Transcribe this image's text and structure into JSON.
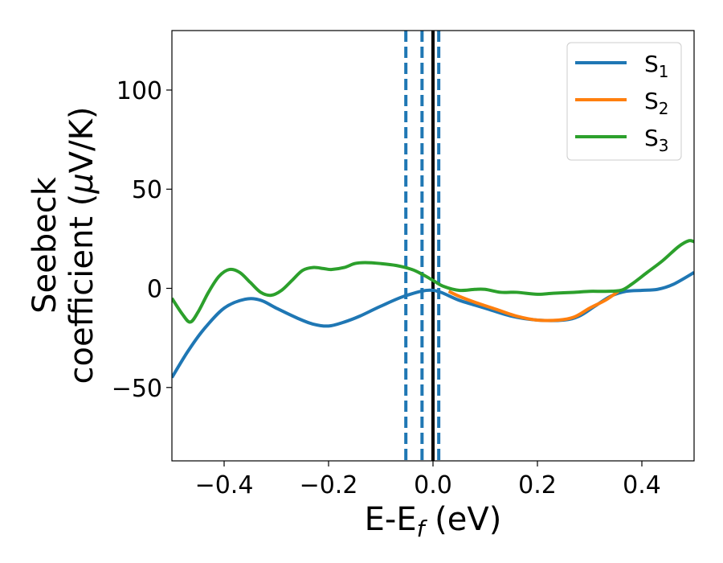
{
  "chart_data": {
    "type": "line",
    "xlabel": {
      "main": "E-E",
      "sub": "f",
      "tail": " (eV)"
    },
    "ylabel": {
      "line1": "Seebeck",
      "line2_start": "coefficient  (",
      "mu": "μ",
      "line2_end": "V/K)"
    },
    "xlim": [
      -0.5,
      0.5
    ],
    "ylim": [
      -87,
      130
    ],
    "x_ticks": [
      -0.4,
      -0.2,
      0.0,
      0.2,
      0.4
    ],
    "x_tick_labels": [
      "−0.4",
      "−0.2",
      "0.0",
      "0.2",
      "0.4"
    ],
    "y_ticks": [
      -50,
      0,
      50,
      100
    ],
    "y_tick_labels": [
      "−50",
      "0",
      "50",
      "100"
    ],
    "grid": false,
    "legend_position": "top-right",
    "vertical_lines": [
      {
        "x": -0.052,
        "style": "dashed",
        "color": "#1f77b4"
      },
      {
        "x": -0.021,
        "style": "dashed",
        "color": "#1f77b4"
      },
      {
        "x": 0.011,
        "style": "dashed",
        "color": "#1f77b4"
      },
      {
        "x": 0.0,
        "style": "solid",
        "color": "#000000"
      }
    ],
    "series": [
      {
        "name": "S",
        "sub": "1",
        "color": "#1f77b4",
        "points": [
          [
            -0.5,
            -45
          ],
          [
            -0.47,
            -32
          ],
          [
            -0.44,
            -21
          ],
          [
            -0.4,
            -10
          ],
          [
            -0.36,
            -5.5
          ],
          [
            -0.33,
            -6
          ],
          [
            -0.3,
            -10
          ],
          [
            -0.26,
            -15
          ],
          [
            -0.23,
            -18
          ],
          [
            -0.2,
            -19
          ],
          [
            -0.17,
            -17
          ],
          [
            -0.14,
            -14
          ],
          [
            -0.1,
            -9
          ],
          [
            -0.05,
            -3.5
          ],
          [
            0.0,
            -1
          ],
          [
            0.05,
            -6
          ],
          [
            0.1,
            -10
          ],
          [
            0.15,
            -14
          ],
          [
            0.2,
            -16
          ],
          [
            0.25,
            -16
          ],
          [
            0.28,
            -14
          ],
          [
            0.31,
            -9
          ],
          [
            0.34,
            -4
          ],
          [
            0.37,
            -1.5
          ],
          [
            0.4,
            -1
          ],
          [
            0.43,
            -0.5
          ],
          [
            0.46,
            2
          ],
          [
            0.5,
            8
          ]
        ]
      },
      {
        "name": "S",
        "sub": "2",
        "color": "#ff7f0e",
        "points": [
          [
            0.03,
            -1.5
          ],
          [
            0.05,
            -4
          ],
          [
            0.08,
            -7
          ],
          [
            0.12,
            -10.5
          ],
          [
            0.16,
            -14
          ],
          [
            0.2,
            -16
          ],
          [
            0.24,
            -16
          ],
          [
            0.27,
            -14.5
          ],
          [
            0.3,
            -10
          ],
          [
            0.33,
            -6
          ],
          [
            0.355,
            -1.5
          ]
        ]
      },
      {
        "name": "S",
        "sub": "3",
        "color": "#2ca02c",
        "points": [
          [
            -0.5,
            -5
          ],
          [
            -0.48,
            -13
          ],
          [
            -0.465,
            -17
          ],
          [
            -0.45,
            -12
          ],
          [
            -0.43,
            -2
          ],
          [
            -0.41,
            6
          ],
          [
            -0.39,
            9.5
          ],
          [
            -0.37,
            8
          ],
          [
            -0.35,
            3
          ],
          [
            -0.33,
            -2
          ],
          [
            -0.31,
            -3.5
          ],
          [
            -0.29,
            -1
          ],
          [
            -0.27,
            4
          ],
          [
            -0.25,
            9
          ],
          [
            -0.23,
            10.5
          ],
          [
            -0.21,
            10
          ],
          [
            -0.195,
            9.5
          ],
          [
            -0.17,
            10.5
          ],
          [
            -0.15,
            12.5
          ],
          [
            -0.13,
            13
          ],
          [
            -0.1,
            12.5
          ],
          [
            -0.07,
            11.5
          ],
          [
            -0.04,
            9.5
          ],
          [
            -0.02,
            7
          ],
          [
            0.0,
            4
          ],
          [
            0.02,
            1
          ],
          [
            0.05,
            -1
          ],
          [
            0.08,
            -0.5
          ],
          [
            0.1,
            -0.5
          ],
          [
            0.13,
            -2
          ],
          [
            0.16,
            -2
          ],
          [
            0.2,
            -3
          ],
          [
            0.23,
            -2.5
          ],
          [
            0.27,
            -2
          ],
          [
            0.3,
            -1.5
          ],
          [
            0.33,
            -1.5
          ],
          [
            0.36,
            -1
          ],
          [
            0.38,
            2
          ],
          [
            0.41,
            8
          ],
          [
            0.44,
            14
          ],
          [
            0.47,
            21
          ],
          [
            0.49,
            24
          ],
          [
            0.5,
            23.5
          ]
        ]
      }
    ]
  }
}
